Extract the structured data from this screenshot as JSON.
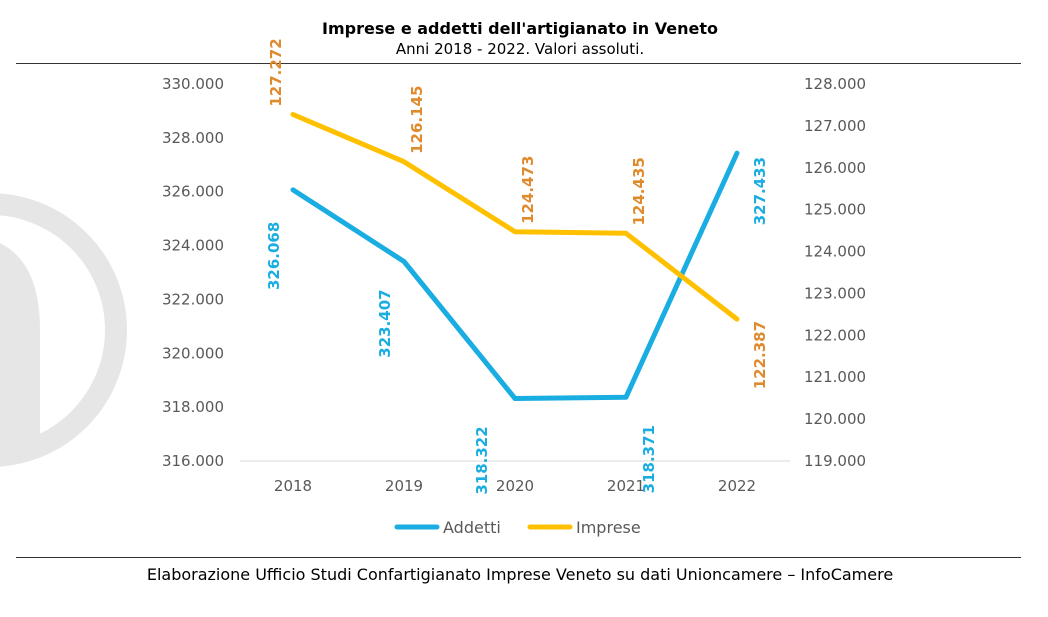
{
  "header": {
    "title": "Imprese e addetti dell'artigianato in Veneto",
    "subtitle": "Anni 2018 - 2022. Valori assoluti."
  },
  "footer": {
    "source": "Elaborazione Ufficio Studi Confartigianato Imprese Veneto su dati Unioncamere – InfoCamere"
  },
  "colors": {
    "addetti": "#1AADE2",
    "imprese": "#FFC000",
    "imprese_label": "#E08A2E",
    "axis_text": "#595959",
    "watermark": "#E6E6E6"
  },
  "chart_data": {
    "type": "line",
    "title": "Imprese e addetti dell'artigianato in Veneto",
    "subtitle": "Anni 2018 - 2022. Valori assoluti.",
    "categories": [
      "2018",
      "2019",
      "2020",
      "2021",
      "2022"
    ],
    "series": [
      {
        "name": "Addetti",
        "axis": "left",
        "values": [
          326068,
          323407,
          318322,
          318371,
          327433
        ],
        "labels": [
          "326.068",
          "323.407",
          "318.322",
          "318.371",
          "327.433"
        ]
      },
      {
        "name": "Imprese",
        "axis": "right",
        "values": [
          127272,
          126145,
          124473,
          124435,
          122387
        ],
        "labels": [
          "127.272",
          "126.145",
          "124.473",
          "124.435",
          "122.387"
        ]
      }
    ],
    "y_left": {
      "min": 316000,
      "max": 330000,
      "ticks": [
        "316.000",
        "318.000",
        "320.000",
        "322.000",
        "324.000",
        "326.000",
        "328.000",
        "330.000"
      ]
    },
    "y_right": {
      "min": 119000,
      "max": 128000,
      "ticks": [
        "119.000",
        "120.000",
        "121.000",
        "122.000",
        "123.000",
        "124.000",
        "125.000",
        "126.000",
        "127.000",
        "128.000"
      ]
    },
    "grid": false,
    "legend": "bottom"
  }
}
